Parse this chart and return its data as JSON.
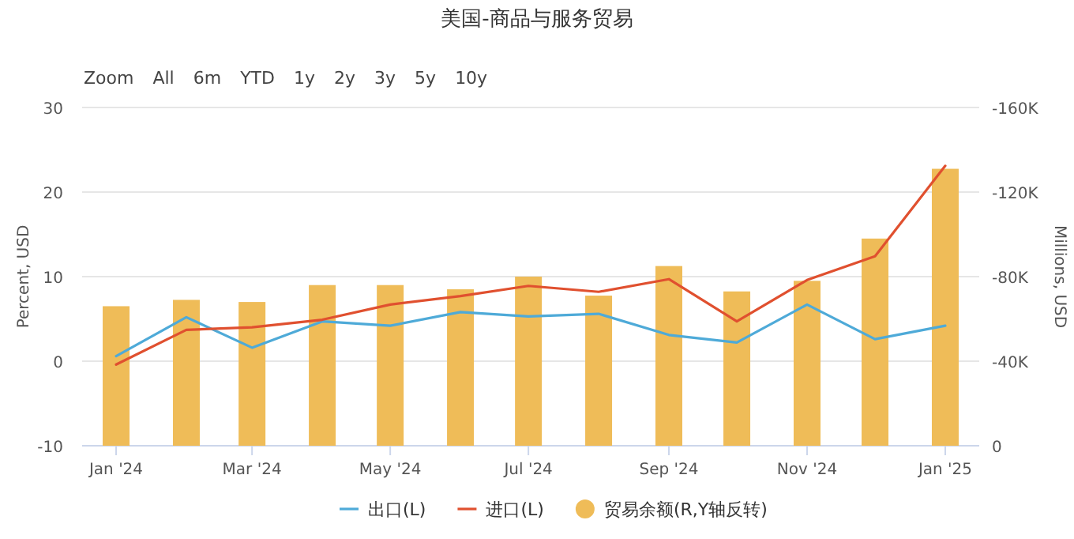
{
  "chart_data": {
    "type": "line",
    "title": "美国-商品与服务贸易",
    "annotations": [
      "Zoom",
      "All",
      "6m",
      "YTD",
      "1y",
      "2y",
      "3y",
      "5y",
      "10y"
    ],
    "x": [
      "2024-01",
      "2024-02",
      "2024-03",
      "2024-04",
      "2024-05",
      "2024-06",
      "2024-07",
      "2024-08",
      "2024-09",
      "2024-10",
      "2024-11",
      "2024-12",
      "2025-01"
    ],
    "xlim": [
      "2023-12-17",
      "2025-01-16"
    ],
    "xticks": [
      {
        "value": "2024-01-01",
        "label": "Jan '24"
      },
      {
        "value": "2024-03-01",
        "label": "Mar '24"
      },
      {
        "value": "2024-05-01",
        "label": "May '24"
      },
      {
        "value": "2024-07-01",
        "label": "Jul '24"
      },
      {
        "value": "2024-09-01",
        "label": "Sep '24"
      },
      {
        "value": "2024-11-01",
        "label": "Nov '24"
      },
      {
        "value": "2025-01-01",
        "label": "Jan '25"
      }
    ],
    "ylabel": "Percent, USD",
    "y2label": "Millions, USD",
    "ylim": [
      -10,
      30
    ],
    "yticks": [
      -10,
      0,
      10,
      20,
      30
    ],
    "y2lim": [
      0,
      -160000
    ],
    "y2ticks": [
      {
        "value": 0,
        "label": "0"
      },
      {
        "value": -40000,
        "label": "-40K"
      },
      {
        "value": -80000,
        "label": "-80K"
      },
      {
        "value": -120000,
        "label": "-120K"
      },
      {
        "value": -160000,
        "label": "-160K"
      }
    ],
    "grid": "y",
    "legend": "bottom",
    "marker": "none",
    "line_style": "solid",
    "series": [
      {
        "name": "贸易余额(R,Y轴反转)",
        "type": "bar",
        "axis": "y2",
        "color": "#efbc58",
        "values": [
          -66000,
          -69000,
          -68000,
          -76000,
          -76000,
          -74000,
          -80000,
          -71000,
          -85000,
          -73000,
          -78000,
          -98000,
          -131000
        ]
      },
      {
        "name": "出口(L)",
        "color": "#4eaad8",
        "values": [
          0.6,
          5.2,
          1.6,
          4.7,
          4.2,
          5.8,
          5.3,
          5.6,
          3.1,
          2.2,
          6.7,
          2.6,
          4.2
        ]
      },
      {
        "name": "进口(L)",
        "color": "#e0502f",
        "values": [
          -0.4,
          3.7,
          4.0,
          4.9,
          6.7,
          7.7,
          8.9,
          8.2,
          9.7,
          4.7,
          9.6,
          12.4,
          23.1
        ]
      }
    ]
  }
}
